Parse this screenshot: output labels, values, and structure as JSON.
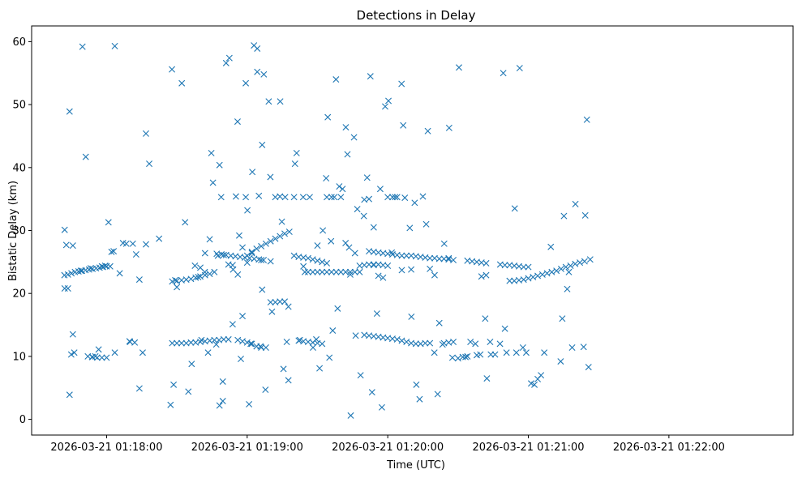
{
  "chart_data": {
    "type": "scatter",
    "title": "Detections in Delay",
    "xlabel": "Time (UTC)",
    "ylabel": "Bistatic Delay (km)",
    "marker": "x",
    "color": "#1f77b4",
    "x_tick_labels": [
      "2026-03-21 01:18:00",
      "2026-03-21 01:19:00",
      "2026-03-21 01:20:00",
      "2026-03-21 01:21:00",
      "2026-03-21 01:22:00"
    ],
    "x_tick_seconds": [
      0,
      60,
      120,
      180,
      240
    ],
    "y_ticks": [
      0,
      10,
      20,
      30,
      40,
      50,
      60
    ],
    "xlim_seconds": [
      -32.0,
      293.0
    ],
    "ylim": [
      -2.5,
      62.5
    ],
    "grid": false,
    "seconds_axis_origin": "2026-03-21 01:18:00",
    "points": [
      [
        -17.9,
        30.1
      ],
      [
        -17.9,
        20.8
      ],
      [
        -17.2,
        27.7
      ],
      [
        -16.5,
        20.8
      ],
      [
        -15.8,
        48.9
      ],
      [
        -15.8,
        3.9
      ],
      [
        -15.1,
        10.3
      ],
      [
        -14.4,
        27.6
      ],
      [
        -14.4,
        13.5
      ],
      [
        -13.8,
        10.6
      ],
      [
        -11.0,
        23.6
      ],
      [
        -10.3,
        59.2
      ],
      [
        -8.9,
        41.7
      ],
      [
        -6.8,
        24.0
      ],
      [
        -6.2,
        9.9
      ],
      [
        -4.8,
        10.0
      ],
      [
        -3.4,
        11.1
      ],
      [
        -2.0,
        24.3
      ],
      [
        -0.6,
        24.4
      ],
      [
        0.8,
        31.3
      ],
      [
        2.1,
        26.6
      ],
      [
        3.5,
        59.3
      ],
      [
        3.5,
        10.6
      ],
      [
        5.6,
        23.2
      ],
      [
        7.0,
        28.0
      ],
      [
        8.4,
        27.9
      ],
      [
        9.8,
        12.4
      ],
      [
        11.2,
        27.9
      ],
      [
        12.6,
        26.2
      ],
      [
        14.0,
        22.2
      ],
      [
        14.0,
        4.9
      ],
      [
        15.4,
        10.6
      ],
      [
        16.8,
        45.4
      ],
      [
        16.8,
        27.8
      ],
      [
        18.2,
        40.6
      ],
      [
        22.4,
        28.7
      ],
      [
        27.3,
        2.3
      ],
      [
        27.9,
        55.6
      ],
      [
        28.6,
        5.5
      ],
      [
        29.3,
        22.1
      ],
      [
        32.1,
        53.4
      ],
      [
        33.5,
        31.3
      ],
      [
        34.9,
        4.4
      ],
      [
        36.3,
        8.8
      ],
      [
        37.7,
        24.4
      ],
      [
        39.1,
        22.6
      ],
      [
        40.5,
        12.6
      ],
      [
        41.9,
        23.4
      ],
      [
        43.3,
        10.6
      ],
      [
        44.7,
        42.3
      ],
      [
        45.4,
        37.6
      ],
      [
        46.8,
        11.9
      ],
      [
        47.5,
        26.0
      ],
      [
        48.2,
        2.2
      ],
      [
        48.2,
        40.4
      ],
      [
        48.9,
        35.3
      ],
      [
        49.6,
        6.0
      ],
      [
        49.6,
        2.9
      ],
      [
        51.0,
        56.6
      ],
      [
        52.4,
        57.4
      ],
      [
        53.8,
        15.1
      ],
      [
        53.8,
        24.5
      ],
      [
        55.2,
        35.4
      ],
      [
        55.9,
        47.3
      ],
      [
        56.6,
        29.2
      ],
      [
        57.3,
        9.6
      ],
      [
        58.0,
        16.4
      ],
      [
        59.4,
        53.4
      ],
      [
        59.4,
        35.3
      ],
      [
        60.1,
        33.2
      ],
      [
        60.8,
        2.4
      ],
      [
        61.5,
        12.0
      ],
      [
        62.2,
        39.3
      ],
      [
        62.9,
        59.4
      ],
      [
        64.3,
        58.9
      ],
      [
        64.3,
        55.2
      ],
      [
        65.0,
        35.5
      ],
      [
        65.7,
        11.6
      ],
      [
        66.4,
        43.6
      ],
      [
        66.4,
        20.6
      ],
      [
        67.1,
        54.8
      ],
      [
        67.8,
        4.7
      ],
      [
        69.2,
        50.5
      ],
      [
        69.9,
        38.5
      ],
      [
        70.6,
        17.1
      ],
      [
        74.1,
        50.5
      ],
      [
        74.8,
        31.4
      ],
      [
        75.5,
        8.0
      ],
      [
        76.2,
        35.3
      ],
      [
        76.9,
        12.3
      ],
      [
        77.6,
        6.2
      ],
      [
        77.6,
        17.9
      ],
      [
        80.4,
        40.6
      ],
      [
        81.1,
        42.3
      ],
      [
        82.5,
        12.6
      ],
      [
        83.9,
        35.3
      ],
      [
        84.6,
        23.4
      ],
      [
        86.7,
        35.3
      ],
      [
        88.1,
        11.4
      ],
      [
        89.5,
        12.7
      ],
      [
        90.9,
        8.1
      ],
      [
        92.3,
        30.0
      ],
      [
        93.7,
        38.3
      ],
      [
        94.4,
        48.0
      ],
      [
        95.1,
        9.8
      ],
      [
        95.8,
        28.3
      ],
      [
        96.5,
        14.1
      ],
      [
        97.2,
        35.3
      ],
      [
        97.9,
        54.0
      ],
      [
        98.6,
        17.6
      ],
      [
        99.3,
        37.0
      ],
      [
        100.7,
        36.6
      ],
      [
        102.1,
        46.4
      ],
      [
        102.8,
        42.1
      ],
      [
        103.5,
        27.3
      ],
      [
        104.2,
        0.6
      ],
      [
        105.6,
        44.8
      ],
      [
        106.3,
        13.3
      ],
      [
        107.0,
        33.4
      ],
      [
        108.4,
        7.0
      ],
      [
        109.8,
        32.3
      ],
      [
        111.2,
        38.4
      ],
      [
        112.6,
        54.5
      ],
      [
        113.3,
        4.3
      ],
      [
        114.0,
        30.5
      ],
      [
        115.4,
        16.8
      ],
      [
        116.8,
        36.6
      ],
      [
        117.5,
        1.9
      ],
      [
        118.9,
        49.7
      ],
      [
        120.3,
        50.6
      ],
      [
        121.7,
        26.5
      ],
      [
        123.1,
        35.3
      ],
      [
        125.9,
        53.3
      ],
      [
        126.6,
        46.7
      ],
      [
        127.3,
        35.2
      ],
      [
        129.4,
        30.4
      ],
      [
        130.1,
        16.3
      ],
      [
        131.5,
        34.4
      ],
      [
        132.2,
        5.5
      ],
      [
        133.6,
        3.2
      ],
      [
        135.0,
        35.4
      ],
      [
        136.4,
        31.0
      ],
      [
        137.1,
        45.8
      ],
      [
        139.9,
        10.6
      ],
      [
        141.3,
        4.0
      ],
      [
        142.0,
        15.3
      ],
      [
        143.4,
        11.9
      ],
      [
        144.1,
        27.9
      ],
      [
        146.2,
        46.3
      ],
      [
        147.6,
        9.8
      ],
      [
        150.4,
        55.9
      ],
      [
        153.2,
        9.9
      ],
      [
        155.3,
        12.3
      ],
      [
        157.4,
        12.0
      ],
      [
        159.5,
        10.3
      ],
      [
        161.6,
        16.0
      ],
      [
        162.3,
        6.5
      ],
      [
        163.7,
        12.3
      ],
      [
        165.8,
        10.3
      ],
      [
        167.9,
        12.0
      ],
      [
        169.3,
        55.0
      ],
      [
        170.0,
        14.4
      ],
      [
        170.7,
        10.6
      ],
      [
        174.2,
        33.5
      ],
      [
        174.9,
        10.6
      ],
      [
        176.3,
        55.8
      ],
      [
        177.7,
        11.4
      ],
      [
        179.1,
        10.6
      ],
      [
        181.2,
        5.7
      ],
      [
        182.6,
        5.5
      ],
      [
        184.0,
        6.4
      ],
      [
        185.4,
        7.0
      ],
      [
        186.8,
        10.6
      ],
      [
        189.6,
        27.4
      ],
      [
        193.8,
        9.2
      ],
      [
        194.5,
        16.0
      ],
      [
        195.2,
        32.3
      ],
      [
        196.6,
        20.7
      ],
      [
        197.3,
        23.4
      ],
      [
        198.7,
        11.4
      ],
      [
        200.1,
        34.2
      ],
      [
        203.6,
        11.5
      ],
      [
        204.3,
        32.4
      ],
      [
        205.0,
        47.6
      ],
      [
        205.7,
        8.3
      ],
      [
        206.4,
        25.4
      ],
      [
        -18.0,
        22.9
      ],
      [
        -16.5,
        23.0
      ],
      [
        -15.0,
        23.2
      ],
      [
        -13.5,
        23.4
      ],
      [
        -12.0,
        23.5
      ],
      [
        -10.5,
        23.6
      ],
      [
        -9.0,
        23.7
      ],
      [
        -7.5,
        23.8
      ],
      [
        -6.0,
        23.9
      ],
      [
        -4.5,
        24.0
      ],
      [
        -3.0,
        24.1
      ],
      [
        -1.5,
        24.2
      ],
      [
        0.0,
        24.3
      ],
      [
        1.5,
        24.3
      ],
      [
        3.0,
        26.7
      ],
      [
        28.0,
        21.9
      ],
      [
        30.0,
        22.0
      ],
      [
        32.0,
        22.1
      ],
      [
        34.0,
        22.2
      ],
      [
        36.0,
        22.3
      ],
      [
        38.0,
        22.5
      ],
      [
        40.0,
        22.7
      ],
      [
        42.0,
        22.9
      ],
      [
        44.0,
        23.1
      ],
      [
        46.0,
        23.4
      ],
      [
        47.0,
        26.3
      ],
      [
        49.0,
        26.2
      ],
      [
        51.0,
        26.1
      ],
      [
        53.0,
        26.0
      ],
      [
        55.0,
        25.9
      ],
      [
        57.0,
        25.8
      ],
      [
        59.0,
        25.7
      ],
      [
        61.0,
        25.6
      ],
      [
        63.0,
        25.5
      ],
      [
        65.0,
        25.4
      ],
      [
        67.0,
        25.3
      ],
      [
        60.0,
        26.0
      ],
      [
        62.0,
        26.6
      ],
      [
        64.0,
        27.1
      ],
      [
        66.0,
        27.5
      ],
      [
        68.0,
        27.9
      ],
      [
        70.0,
        28.3
      ],
      [
        72.0,
        28.7
      ],
      [
        74.0,
        29.1
      ],
      [
        76.0,
        29.5
      ],
      [
        78.0,
        29.8
      ],
      [
        80.0,
        26.0
      ],
      [
        82.0,
        25.8
      ],
      [
        84.0,
        25.7
      ],
      [
        86.0,
        25.6
      ],
      [
        88.0,
        25.4
      ],
      [
        90.0,
        25.2
      ],
      [
        92.0,
        25.0
      ],
      [
        94.0,
        24.8
      ],
      [
        86.0,
        23.4
      ],
      [
        88.0,
        23.4
      ],
      [
        90.0,
        23.4
      ],
      [
        92.0,
        23.4
      ],
      [
        94.0,
        23.4
      ],
      [
        96.0,
        23.4
      ],
      [
        98.0,
        23.4
      ],
      [
        100.0,
        23.4
      ],
      [
        102.0,
        23.4
      ],
      [
        104.0,
        23.4
      ],
      [
        106.0,
        23.4
      ],
      [
        108.0,
        23.4
      ],
      [
        110.0,
        24.5
      ],
      [
        112.0,
        24.6
      ],
      [
        114.0,
        24.6
      ],
      [
        116.0,
        24.6
      ],
      [
        118.0,
        24.5
      ],
      [
        120.0,
        24.4
      ],
      [
        112.0,
        26.7
      ],
      [
        114.0,
        26.6
      ],
      [
        116.0,
        26.5
      ],
      [
        118.0,
        26.4
      ],
      [
        120.0,
        26.3
      ],
      [
        122.0,
        26.2
      ],
      [
        124.0,
        26.1
      ],
      [
        126.0,
        26.0
      ],
      [
        128.0,
        26.0
      ],
      [
        130.0,
        26.0
      ],
      [
        132.0,
        25.9
      ],
      [
        134.0,
        25.8
      ],
      [
        136.0,
        25.7
      ],
      [
        138.0,
        25.6
      ],
      [
        140.0,
        25.6
      ],
      [
        142.0,
        25.5
      ],
      [
        144.0,
        25.5
      ],
      [
        146.0,
        25.4
      ],
      [
        148.0,
        25.3
      ],
      [
        154.0,
        25.2
      ],
      [
        156.0,
        25.1
      ],
      [
        158.0,
        25.0
      ],
      [
        160.0,
        24.9
      ],
      [
        162.0,
        24.8
      ],
      [
        168.0,
        24.6
      ],
      [
        170.0,
        24.5
      ],
      [
        172.0,
        24.5
      ],
      [
        174.0,
        24.4
      ],
      [
        176.0,
        24.3
      ],
      [
        178.0,
        24.2
      ],
      [
        180.0,
        24.2
      ],
      [
        172.0,
        22.0
      ],
      [
        174.0,
        22.0
      ],
      [
        176.0,
        22.1
      ],
      [
        178.0,
        22.2
      ],
      [
        180.0,
        22.4
      ],
      [
        182.0,
        22.6
      ],
      [
        184.0,
        22.8
      ],
      [
        186.0,
        23.0
      ],
      [
        188.0,
        23.2
      ],
      [
        190.0,
        23.4
      ],
      [
        192.0,
        23.6
      ],
      [
        194.0,
        23.9
      ],
      [
        196.0,
        24.2
      ],
      [
        198.0,
        24.4
      ],
      [
        200.0,
        24.7
      ],
      [
        202.0,
        24.9
      ],
      [
        204.0,
        25.1
      ],
      [
        -6.0,
        9.9
      ],
      [
        -4.0,
        9.8
      ],
      [
        -2.0,
        9.8
      ],
      [
        0.0,
        9.8
      ],
      [
        -8.0,
        10.0
      ],
      [
        10.0,
        12.3
      ],
      [
        12.0,
        12.2
      ],
      [
        28.0,
        12.1
      ],
      [
        30.0,
        12.1
      ],
      [
        32.0,
        12.1
      ],
      [
        34.0,
        12.1
      ],
      [
        36.0,
        12.2
      ],
      [
        38.0,
        12.2
      ],
      [
        40.0,
        12.3
      ],
      [
        42.0,
        12.4
      ],
      [
        44.0,
        12.5
      ],
      [
        46.0,
        12.6
      ],
      [
        48.0,
        12.6
      ],
      [
        50.0,
        12.7
      ],
      [
        52.0,
        12.7
      ],
      [
        56.0,
        12.6
      ],
      [
        58.0,
        12.4
      ],
      [
        60.0,
        12.2
      ],
      [
        62.0,
        12.0
      ],
      [
        64.0,
        11.6
      ],
      [
        66.0,
        11.4
      ],
      [
        68.0,
        11.4
      ],
      [
        70.0,
        18.6
      ],
      [
        72.0,
        18.6
      ],
      [
        74.0,
        18.7
      ],
      [
        76.0,
        18.7
      ],
      [
        82.0,
        12.5
      ],
      [
        84.0,
        12.4
      ],
      [
        86.0,
        12.3
      ],
      [
        88.0,
        12.2
      ],
      [
        90.0,
        12.1
      ],
      [
        92.0,
        12.0
      ],
      [
        110.0,
        13.4
      ],
      [
        112.0,
        13.3
      ],
      [
        114.0,
        13.2
      ],
      [
        116.0,
        13.1
      ],
      [
        118.0,
        13.0
      ],
      [
        120.0,
        12.9
      ],
      [
        122.0,
        12.8
      ],
      [
        124.0,
        12.7
      ],
      [
        126.0,
        12.5
      ],
      [
        128.0,
        12.3
      ],
      [
        130.0,
        12.1
      ],
      [
        132.0,
        12.0
      ],
      [
        134.0,
        12.0
      ],
      [
        136.0,
        12.1
      ],
      [
        138.0,
        12.1
      ],
      [
        144.0,
        12.1
      ],
      [
        146.0,
        12.2
      ],
      [
        148.0,
        12.3
      ],
      [
        150.0,
        9.7
      ],
      [
        152.0,
        9.9
      ],
      [
        154.0,
        10.0
      ],
      [
        158.0,
        10.2
      ],
      [
        164.0,
        10.3
      ],
      [
        30.0,
        21.0
      ],
      [
        40.0,
        24.1
      ],
      [
        42.0,
        26.4
      ],
      [
        44.0,
        28.6
      ],
      [
        50.0,
        26.1
      ],
      [
        52.0,
        24.6
      ],
      [
        54.0,
        23.8
      ],
      [
        56.0,
        23.0
      ],
      [
        58.0,
        27.3
      ],
      [
        60.0,
        24.9
      ],
      [
        62.0,
        26.4
      ],
      [
        66.0,
        25.3
      ],
      [
        70.0,
        25.1
      ],
      [
        72.0,
        35.3
      ],
      [
        74.0,
        35.4
      ],
      [
        80.0,
        35.3
      ],
      [
        84.0,
        24.3
      ],
      [
        90.0,
        27.6
      ],
      [
        94.0,
        35.3
      ],
      [
        96.0,
        35.3
      ],
      [
        100.0,
        35.3
      ],
      [
        102.0,
        28.0
      ],
      [
        104.0,
        23.0
      ],
      [
        106.0,
        26.4
      ],
      [
        108.0,
        24.4
      ],
      [
        110.0,
        34.9
      ],
      [
        112.0,
        35.0
      ],
      [
        114.0,
        24.5
      ],
      [
        116.0,
        22.8
      ],
      [
        118.0,
        22.5
      ],
      [
        120.0,
        35.3
      ],
      [
        122.0,
        35.3
      ],
      [
        124.0,
        35.3
      ],
      [
        126.0,
        23.7
      ],
      [
        130.0,
        23.8
      ],
      [
        138.0,
        23.9
      ],
      [
        140.0,
        22.9
      ],
      [
        146.0,
        25.6
      ],
      [
        160.0,
        22.7
      ],
      [
        162.0,
        22.9
      ]
    ]
  }
}
